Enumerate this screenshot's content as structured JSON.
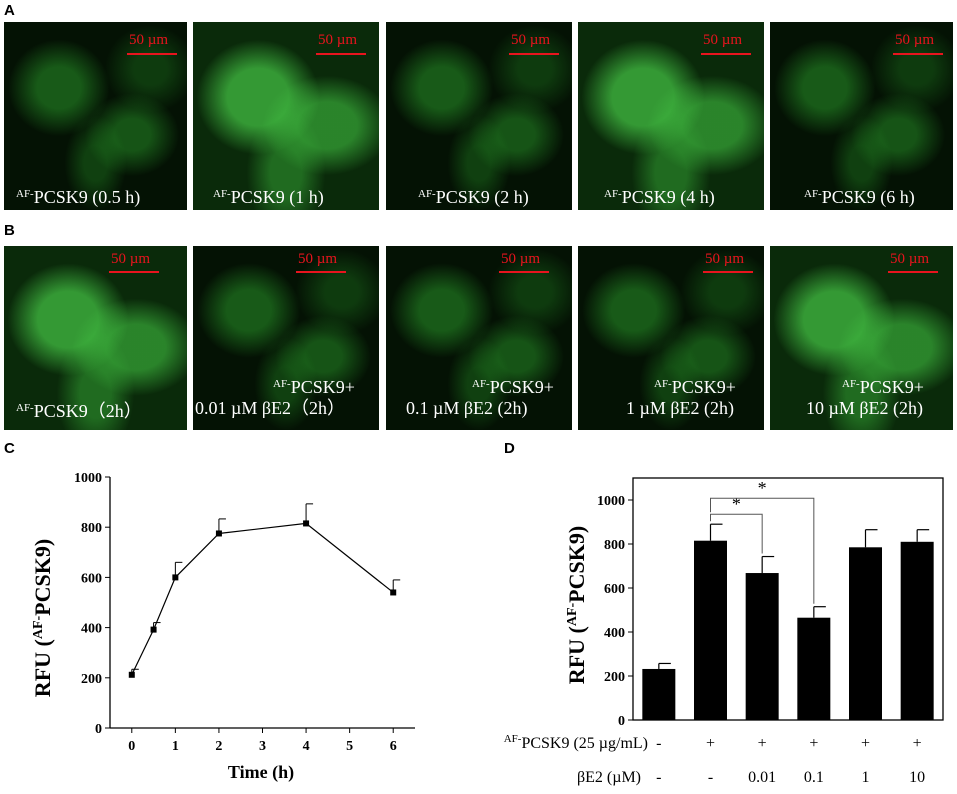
{
  "panels": {
    "A": {
      "label": "A",
      "scale_text": "50 µm",
      "images": [
        {
          "sup": "AF-",
          "text": "PCSK9  (0.5 h)",
          "line2": ""
        },
        {
          "sup": "AF-",
          "text": "PCSK9 (1 h)",
          "line2": ""
        },
        {
          "sup": "AF-",
          "text": "PCSK9 (2 h)",
          "line2": ""
        },
        {
          "sup": "AF-",
          "text": "PCSK9 (4 h)",
          "line2": ""
        },
        {
          "sup": "AF-",
          "text": "PCSK9 (6 h)",
          "line2": ""
        }
      ]
    },
    "B": {
      "label": "B",
      "scale_text": "50 µm",
      "images": [
        {
          "sup": "AF-",
          "text": "PCSK9（2h）",
          "line2": ""
        },
        {
          "sup": "AF-",
          "text": "PCSK9+",
          "line2": "0.01 µM βE2（2h）"
        },
        {
          "sup": "AF-",
          "text": "PCSK9+",
          "line2": "0.1 µM βE2 (2h)"
        },
        {
          "sup": "AF-",
          "text": "PCSK9+",
          "line2": "1 µM βE2 (2h)"
        },
        {
          "sup": "AF-",
          "text": "PCSK9+",
          "line2": "10 µM βE2 (2h)"
        }
      ]
    },
    "C": {
      "label": "C"
    },
    "D": {
      "label": "D"
    }
  },
  "chart_data": [
    {
      "type": "line",
      "panel": "C",
      "xlabel": "Time (h)",
      "ylabel_main": "RFU (",
      "ylabel_sup": "AF-",
      "ylabel_end": "PCSK9)",
      "x": [
        0,
        0.5,
        1,
        2,
        4,
        6
      ],
      "y": [
        212,
        392,
        600,
        775,
        815,
        540
      ],
      "err": [
        22,
        28,
        60,
        58,
        78,
        50
      ],
      "xlim": [
        -0.5,
        6.5
      ],
      "ylim": [
        0,
        1000
      ],
      "xticks": [
        "0",
        "1",
        "2",
        "3",
        "4",
        "5",
        "6"
      ],
      "yticks": [
        "0",
        "200",
        "400",
        "600",
        "800",
        "1000"
      ]
    },
    {
      "type": "bar",
      "panel": "D",
      "ylabel_main": "RFU (",
      "ylabel_sup": "AF-",
      "ylabel_end": "PCSK9)",
      "values": [
        232,
        815,
        668,
        465,
        785,
        810
      ],
      "err": [
        25,
        75,
        75,
        50,
        80,
        55
      ],
      "ylim": [
        0,
        1100
      ],
      "yticks": [
        "0",
        "200",
        "400",
        "600",
        "800",
        "1000"
      ],
      "row1_sup": "AF-",
      "row1_label": "PCSK9 (25 µg/mL)",
      "row1_values": [
        "-",
        "+",
        "+",
        "+",
        "+",
        "+"
      ],
      "row2_label": "βE2 (µM)",
      "row2_values": [
        "-",
        "-",
        "0.01",
        "0.1",
        "1",
        "10"
      ],
      "significance": [
        "*",
        "*"
      ]
    }
  ]
}
